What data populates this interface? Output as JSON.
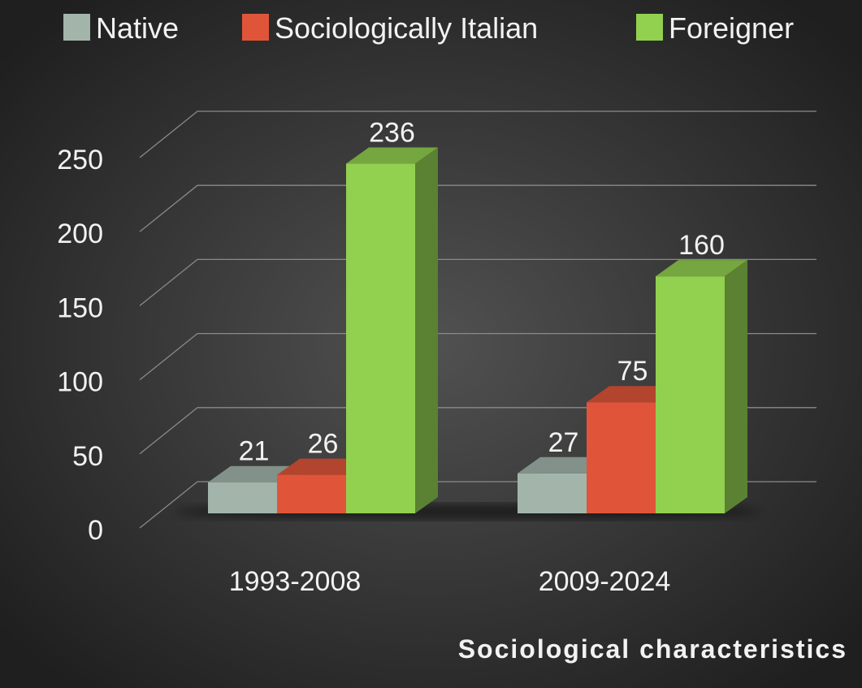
{
  "chart_data": {
    "type": "bar3d",
    "categories": [
      "1993-2008",
      "2009-2024"
    ],
    "series": [
      {
        "name": "Native",
        "color": "#a3b5ab",
        "values": [
          21,
          27
        ]
      },
      {
        "name": "Sociologically Italian",
        "color": "#e0553a",
        "values": [
          26,
          75
        ]
      },
      {
        "name": "Foreigner",
        "color": "#92d050",
        "values": [
          236,
          160
        ]
      }
    ],
    "x_label": "Sociological characteristics",
    "ylim": [
      0,
      250
    ],
    "yticks": [
      0,
      50,
      100,
      150,
      200,
      250
    ],
    "grid": true,
    "legend": "top"
  }
}
